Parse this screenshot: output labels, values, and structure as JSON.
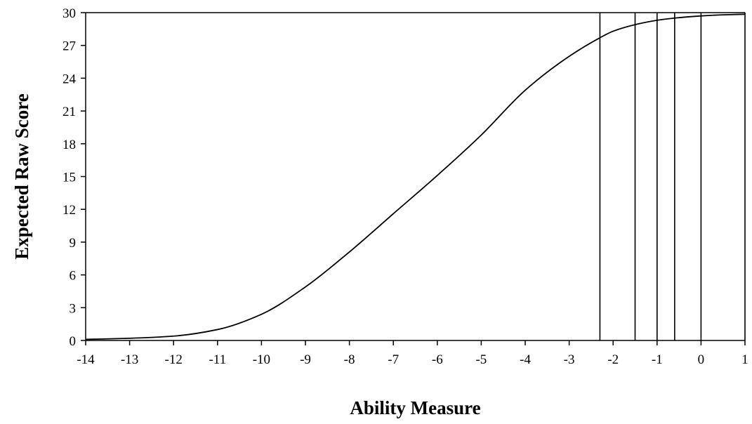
{
  "chart_data": {
    "type": "line",
    "title": "",
    "xlabel": "Ability Measure",
    "ylabel": "Expected Raw Score",
    "xlim": [
      -14,
      1
    ],
    "ylim": [
      0,
      30
    ],
    "x_ticks": [
      "-14",
      "-13",
      "-12",
      "-11",
      "-10",
      "-9",
      "-8",
      "-7",
      "-6",
      "-5",
      "-4",
      "-3",
      "-2",
      "-1",
      "0",
      "1"
    ],
    "y_ticks": [
      "0",
      "3",
      "6",
      "9",
      "12",
      "15",
      "18",
      "21",
      "24",
      "27",
      "30"
    ],
    "grid": false,
    "legend": "none",
    "series": [
      {
        "x": [
          -14,
          -13,
          -12,
          -11,
          -10,
          -9,
          -8,
          -7,
          -6,
          -5,
          -4,
          -3,
          -2.3,
          -2,
          -1.5,
          -1,
          -0.6,
          0,
          0.5,
          1
        ],
        "y": [
          0.1,
          0.2,
          0.4,
          1.0,
          2.4,
          4.9,
          8.1,
          11.6,
          15.1,
          18.8,
          22.9,
          26.0,
          27.7,
          28.3,
          28.9,
          29.3,
          29.5,
          29.7,
          29.8,
          29.85
        ]
      }
    ],
    "vertical_lines": [
      -2.3,
      -1.5,
      -1.0,
      -0.6,
      0,
      1
    ]
  }
}
